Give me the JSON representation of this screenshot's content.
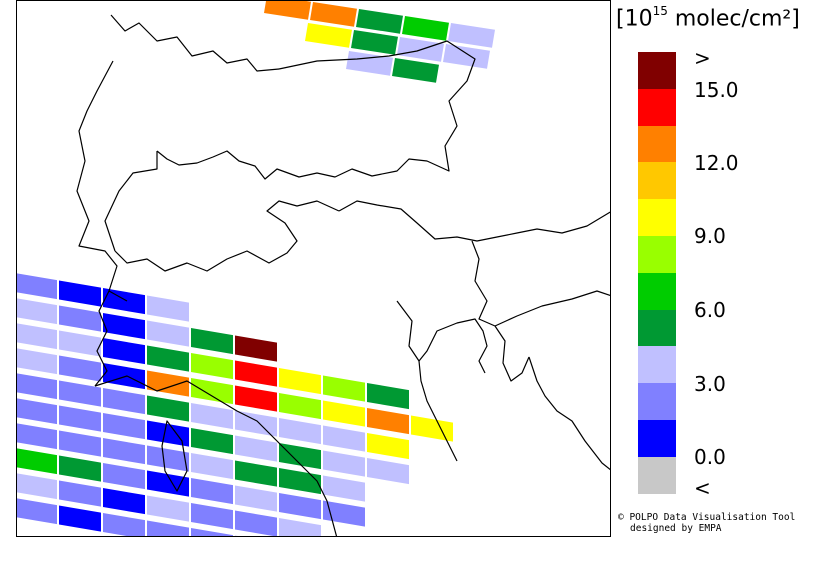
{
  "legend": {
    "unit_prefix": "[10",
    "unit_exp": "15",
    "unit_suffix": " molec/cm²]",
    "colors": [
      "#800000",
      "#ff0000",
      "#ff8000",
      "#ffc800",
      "#ffff00",
      "#99ff00",
      "#00cc00",
      "#009933",
      "#c0c0ff",
      "#8080ff",
      "#0000ff",
      "#c8c8c8"
    ],
    "ticks": [
      ">",
      "15.0",
      "12.0",
      "9.0",
      "6.0",
      "3.0",
      "0.0",
      "<"
    ]
  },
  "credit": {
    "line1": "© POLPO Data Visualisation Tool",
    "line2": "designed by EMPA"
  },
  "map": {
    "pixel_colors": {
      "dark_red": "#800000",
      "red": "#ff0000",
      "orange": "#ff8000",
      "gold": "#ffc800",
      "yellow": "#ffff00",
      "lime": "#99ff00",
      "green": "#00cc00",
      "dark_green": "#009933",
      "light_blue": "#c0c0ff",
      "mid_blue": "#8080ff",
      "blue": "#0000ff"
    }
  }
}
